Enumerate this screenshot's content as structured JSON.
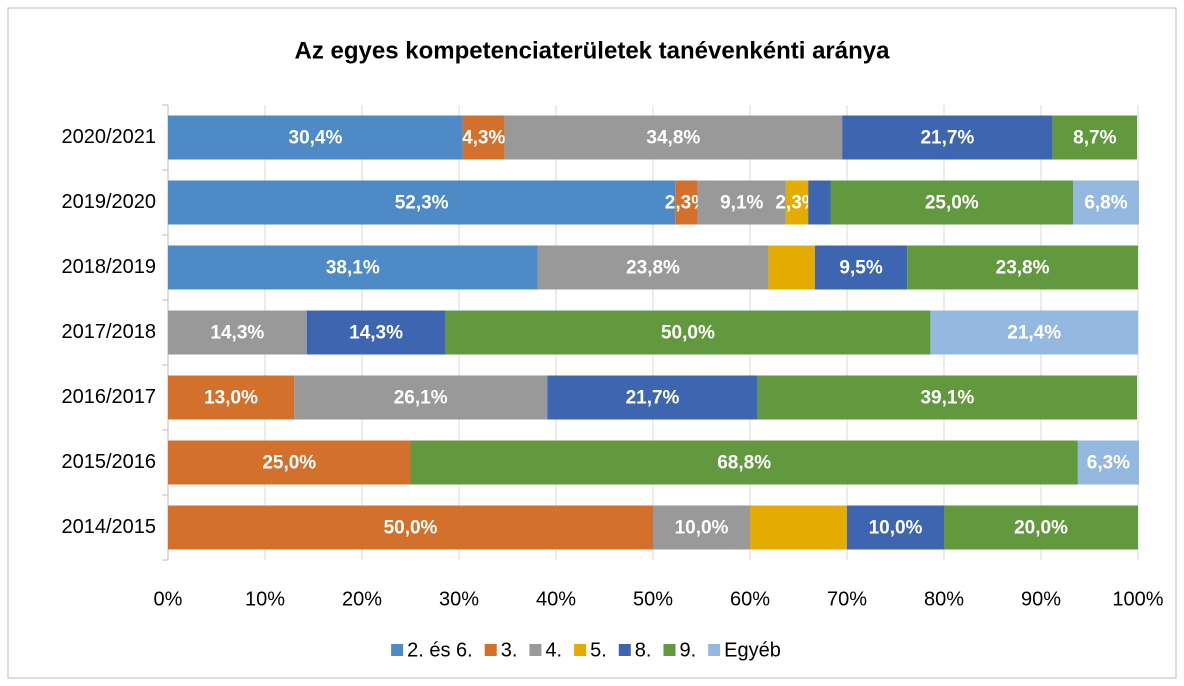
{
  "chart_data": {
    "type": "stacked-bar-horizontal",
    "title": "Az egyes kompetenciaterületek tanévenkénti aránya",
    "categories": [
      "2020/2021",
      "2019/2020",
      "2018/2019",
      "2017/2018",
      "2016/2017",
      "2015/2016",
      "2014/2015"
    ],
    "series": [
      {
        "name": "2. és 6.",
        "color": "#4e8ac6",
        "values": [
          30.4,
          52.3,
          38.1,
          null,
          null,
          null,
          null
        ],
        "value_labels": [
          "30,4%",
          "52,3%",
          "38,1%",
          null,
          null,
          null,
          null
        ]
      },
      {
        "name": "3.",
        "color": "#d3702c",
        "values": [
          4.3,
          2.3,
          null,
          null,
          13.0,
          25.0,
          50.0
        ],
        "value_labels": [
          "4,3%",
          "2,3%",
          null,
          null,
          "13,0%",
          "25,0%",
          "50,0%"
        ]
      },
      {
        "name": "4.",
        "color": "#999999",
        "values": [
          34.8,
          9.1,
          23.8,
          14.3,
          26.1,
          null,
          10.0
        ],
        "value_labels": [
          "34,8%",
          "9,1%",
          "23,8%",
          "14,3%",
          "26,1%",
          null,
          "10,0%"
        ]
      },
      {
        "name": "5.",
        "color": "#e5ac00",
        "values": [
          null,
          2.3,
          4.8,
          null,
          null,
          null,
          10.0
        ],
        "value_labels": [
          null,
          "2,3%",
          null,
          null,
          null,
          null,
          null
        ]
      },
      {
        "name": "8.",
        "color": "#3e65b0",
        "values": [
          21.7,
          2.3,
          9.5,
          14.3,
          21.7,
          null,
          10.0
        ],
        "value_labels": [
          "21,7%",
          null,
          "9,5%",
          "14,3%",
          "21,7%",
          null,
          "10,0%"
        ]
      },
      {
        "name": "9.",
        "color": "#62993e",
        "values": [
          8.7,
          25.0,
          23.8,
          50.0,
          39.1,
          68.8,
          20.0
        ],
        "value_labels": [
          "8,7%",
          "25,0%",
          "23,8%",
          "50,0%",
          "39,1%",
          "68,8%",
          "20,0%"
        ]
      },
      {
        "name": "Egyéb",
        "color": "#94b8e0",
        "values": [
          null,
          6.8,
          null,
          21.4,
          null,
          6.3,
          null
        ],
        "value_labels": [
          null,
          "6,8%",
          null,
          "21,4%",
          null,
          "6,3%",
          null
        ]
      }
    ],
    "xlim": [
      0,
      100
    ],
    "xticks": [
      {
        "value": 0,
        "label": "0%"
      },
      {
        "value": 10,
        "label": "10%"
      },
      {
        "value": 20,
        "label": "20%"
      },
      {
        "value": 30,
        "label": "30%"
      },
      {
        "value": 40,
        "label": "40%"
      },
      {
        "value": 50,
        "label": "50%"
      },
      {
        "value": 60,
        "label": "60%"
      },
      {
        "value": 70,
        "label": "70%"
      },
      {
        "value": 80,
        "label": "80%"
      },
      {
        "value": 90,
        "label": "90%"
      },
      {
        "value": 100,
        "label": "100%"
      }
    ],
    "grid": true,
    "legend": "bottom"
  }
}
